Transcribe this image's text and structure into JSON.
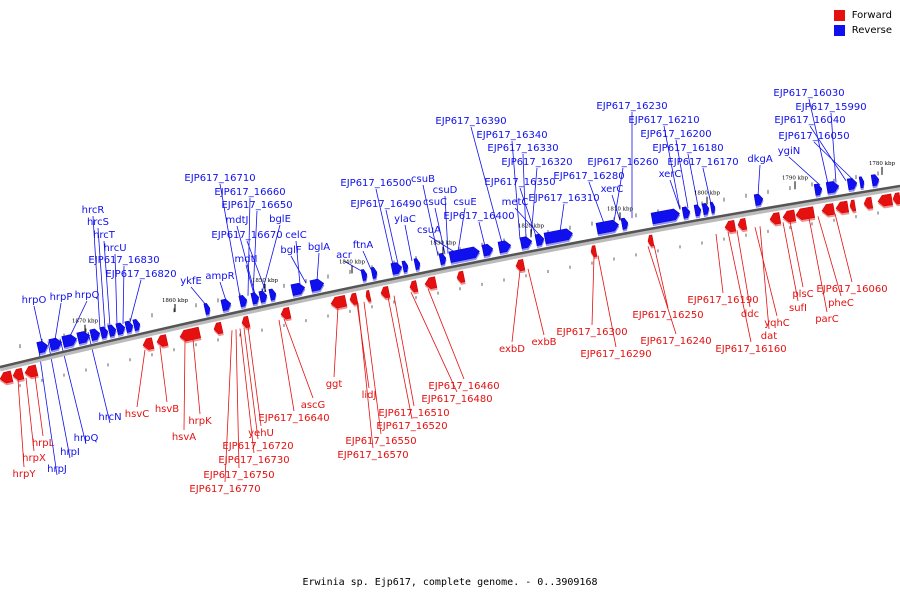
{
  "colors": {
    "forward": "#e51010",
    "reverse": "#1010ee",
    "axis": "#555555",
    "forward_stroke": "#cc0000",
    "reverse_stroke": "#0000cc",
    "tick": "#000000"
  },
  "legend": {
    "forward_label": "Forward",
    "reverse_label": "Reverse"
  },
  "caption": "Erwinia sp. Ejp617, complete genome. - 0..3909168",
  "axis_ticks": [
    "1870 kbp",
    "1860 kbp",
    "1850 kbp",
    "1840 kbp",
    "1830 kbp",
    "1820 kbp",
    "1810 kbp",
    "1800 kbp",
    "1790 kbp",
    "1780 kbp"
  ],
  "reverse_labels": [
    "hrpO",
    "hrpP",
    "hrpQ",
    "hrcR",
    "hrcS",
    "hrcT",
    "hrcU",
    "EJP617_16830",
    "EJP617_16820",
    "ykfE",
    "ampR",
    "EJP617_16710",
    "EJP617_16660",
    "EJP617_16650",
    "mdtJ",
    "bglE",
    "EJP617_16670",
    "mdtI",
    "celC",
    "bglF",
    "bglA",
    "acr",
    "ftnA",
    "EJP617_16500",
    "EJP617_16490",
    "ylaC",
    "csuB",
    "csuD",
    "csuC",
    "csuE",
    "csuA",
    "EJP617_16400",
    "EJP617_16390",
    "EJP617_16340",
    "EJP617_16330",
    "EJP617_16320",
    "EJP617_16350",
    "metC",
    "EJP617_16310",
    "EJP617_16230",
    "EJP617_16210",
    "EJP617_16200",
    "EJP617_16180",
    "EJP617_16260",
    "EJP617_16170",
    "EJP617_16280",
    "xerC",
    "xerC",
    "dkgA",
    "ygiN",
    "EJP617_16030",
    "EJP617_15990",
    "EJP617_16040",
    "EJP617_16050",
    "hrcN",
    "hrpQ",
    "hrpI",
    "hrpJ"
  ],
  "forward_labels": [
    "hrpY",
    "hrpX",
    "hrpL",
    "hsvC",
    "hsvB",
    "hsvA",
    "hrpK",
    "yehU",
    "EJP617_16720",
    "EJP617_16730",
    "EJP617_16750",
    "EJP617_16770",
    "ascG",
    "EJP617_16640",
    "ggt",
    "lidJ",
    "EJP617_16460",
    "EJP617_16480",
    "EJP617_16510",
    "EJP617_16520",
    "EJP617_16550",
    "EJP617_16570",
    "exbD",
    "exbB",
    "EJP617_16300",
    "EJP617_16290",
    "EJP617_16250",
    "EJP617_16240",
    "EJP617_16190",
    "ddc",
    "EJP617_16160",
    "yqhC",
    "dat",
    "sufI",
    "plsC",
    "parC",
    "pheC",
    "EJP617_16060"
  ]
}
